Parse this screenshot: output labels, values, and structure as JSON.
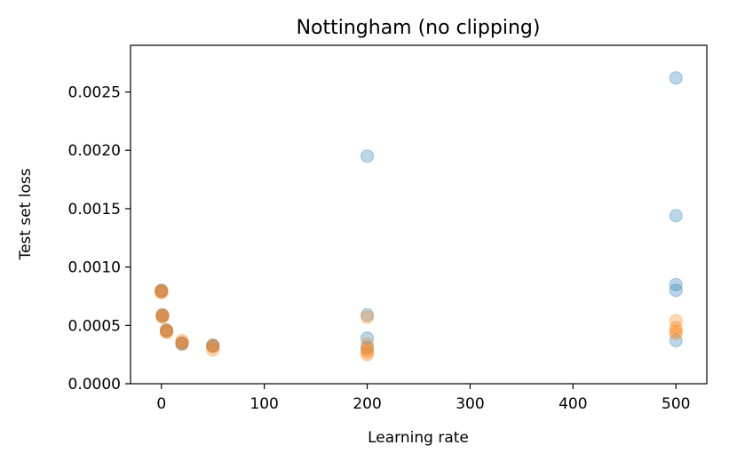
{
  "chart_data": {
    "type": "scatter",
    "title": "Nottingham (no clipping)",
    "xlabel": "Learning rate",
    "ylabel": "Test set loss",
    "xlim": [
      -30,
      530
    ],
    "ylim": [
      0,
      0.0029
    ],
    "xticks": [
      0,
      100,
      200,
      300,
      400,
      500
    ],
    "xtick_labels": [
      "0",
      "100",
      "200",
      "300",
      "400",
      "500"
    ],
    "yticks": [
      0,
      0.0005,
      0.001,
      0.0015,
      0.002,
      0.0025
    ],
    "ytick_labels": [
      "0.0000",
      "0.0005",
      "0.0010",
      "0.0015",
      "0.0020",
      "0.0025"
    ],
    "grid": false,
    "series": [
      {
        "color": "#1f77b4",
        "alpha": 0.3,
        "points": [
          [
            0,
            0.00079
          ],
          [
            0,
            0.0008
          ],
          [
            1,
            0.00058
          ],
          [
            1,
            0.00059
          ],
          [
            5,
            0.00045
          ],
          [
            5,
            0.00046
          ],
          [
            20,
            0.00034
          ],
          [
            20,
            0.00035
          ],
          [
            50,
            0.00032
          ],
          [
            50,
            0.00033
          ],
          [
            200,
            0.00195
          ],
          [
            200,
            0.00059
          ],
          [
            200,
            0.00039
          ],
          [
            200,
            0.00031
          ],
          [
            500,
            0.00262
          ],
          [
            500,
            0.00144
          ],
          [
            500,
            0.00085
          ],
          [
            500,
            0.0008
          ],
          [
            500,
            0.00037
          ]
        ]
      },
      {
        "color": "#ff7f0e",
        "alpha": 0.3,
        "points": [
          [
            0,
            0.00079
          ],
          [
            0,
            0.0008
          ],
          [
            0,
            0.00078
          ],
          [
            1,
            0.00058
          ],
          [
            1,
            0.00059
          ],
          [
            1,
            0.00057
          ],
          [
            5,
            0.00045
          ],
          [
            5,
            0.00046
          ],
          [
            5,
            0.00044
          ],
          [
            20,
            0.00034
          ],
          [
            20,
            0.00035
          ],
          [
            20,
            0.00037
          ],
          [
            50,
            0.00029
          ],
          [
            50,
            0.00032
          ],
          [
            50,
            0.00033
          ],
          [
            200,
            0.00057
          ],
          [
            200,
            0.00034
          ],
          [
            200,
            0.00029
          ],
          [
            200,
            0.00027
          ],
          [
            200,
            0.00025
          ],
          [
            500,
            0.00054
          ],
          [
            500,
            0.00048
          ],
          [
            500,
            0.00045
          ],
          [
            500,
            0.00043
          ]
        ]
      }
    ]
  }
}
